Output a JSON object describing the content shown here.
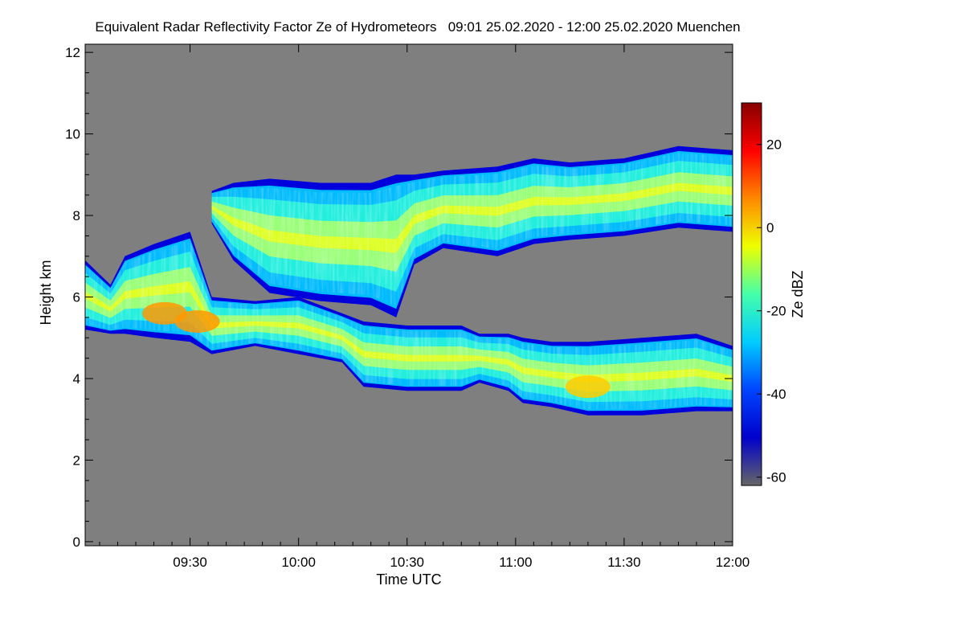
{
  "chart_data": {
    "type": "heatmap",
    "title": "Equivalent Radar Reflectivity Factor Ze of Hydrometeors   09:01 25.02.2020 - 12:00 25.02.2020 Muenchen",
    "xlabel": "Time UTC",
    "ylabel": "Height km",
    "xlim_minutes_after_0900": [
      1,
      180
    ],
    "ylim": [
      -0.1,
      12.2
    ],
    "x_ticks": [
      {
        "label": "09:30",
        "value": 30
      },
      {
        "label": "10:00",
        "value": 60
      },
      {
        "label": "10:30",
        "value": 90
      },
      {
        "label": "11:00",
        "value": 120
      },
      {
        "label": "11:30",
        "value": 150
      },
      {
        "label": "12:00",
        "value": 180
      }
    ],
    "y_ticks": [
      {
        "label": "0",
        "value": 0
      },
      {
        "label": "2",
        "value": 2
      },
      {
        "label": "4",
        "value": 4
      },
      {
        "label": "6",
        "value": 6
      },
      {
        "label": "8",
        "value": 8
      },
      {
        "label": "10",
        "value": 10
      },
      {
        "label": "12",
        "value": 12
      }
    ],
    "colorbar": {
      "label": "Ze dBZ",
      "range": [
        -62,
        30
      ],
      "ticks": [
        {
          "label": "20",
          "value": 20
        },
        {
          "label": "0",
          "value": 0
        },
        {
          "label": "-20",
          "value": -20
        },
        {
          "label": "-40",
          "value": -40
        },
        {
          "label": "-60",
          "value": -60
        }
      ],
      "colors": [
        "#666666",
        "#0000cc",
        "#0044ff",
        "#00ccff",
        "#44ffaa",
        "#eeff00",
        "#ff8800",
        "#ff0000",
        "#880000"
      ]
    },
    "background_color": "#7f7f7f",
    "layers": [
      {
        "name": "lower cloud layer",
        "points": [
          {
            "t": 1,
            "top": 6.9,
            "base": 5.2
          },
          {
            "t": 8,
            "top": 6.3,
            "base": 5.1
          },
          {
            "t": 12,
            "top": 7.0,
            "base": 5.1
          },
          {
            "t": 20,
            "top": 7.3,
            "base": 5.0
          },
          {
            "t": 30,
            "top": 7.6,
            "base": 4.9
          },
          {
            "t": 36,
            "top": 6.0,
            "base": 4.6
          },
          {
            "t": 48,
            "top": 5.9,
            "base": 4.8
          },
          {
            "t": 60,
            "top": 6.0,
            "base": 4.6
          },
          {
            "t": 72,
            "top": 5.6,
            "base": 4.4
          },
          {
            "t": 78,
            "top": 5.4,
            "base": 3.8
          },
          {
            "t": 90,
            "top": 5.3,
            "base": 3.7
          },
          {
            "t": 105,
            "top": 5.3,
            "base": 3.7
          },
          {
            "t": 110,
            "top": 5.1,
            "base": 3.9
          },
          {
            "t": 118,
            "top": 5.1,
            "base": 3.7
          },
          {
            "t": 122,
            "top": 5.0,
            "base": 3.4
          },
          {
            "t": 130,
            "top": 4.9,
            "base": 3.3
          },
          {
            "t": 140,
            "top": 4.9,
            "base": 3.1
          },
          {
            "t": 155,
            "top": 5.0,
            "base": 3.1
          },
          {
            "t": 170,
            "top": 5.1,
            "base": 3.2
          },
          {
            "t": 180,
            "top": 4.8,
            "base": 3.2
          }
        ],
        "cores": [
          {
            "t": 23,
            "h": 5.6,
            "dbz": 5
          },
          {
            "t": 32,
            "h": 5.4,
            "dbz": 8
          },
          {
            "t": 140,
            "h": 3.8,
            "dbz": 2
          }
        ]
      },
      {
        "name": "upper cloud layer",
        "points": [
          {
            "t": 36,
            "top": 8.6,
            "base": 7.8
          },
          {
            "t": 42,
            "top": 8.8,
            "base": 6.9
          },
          {
            "t": 52,
            "top": 8.9,
            "base": 6.1
          },
          {
            "t": 66,
            "top": 8.8,
            "base": 5.9
          },
          {
            "t": 80,
            "top": 8.8,
            "base": 5.8
          },
          {
            "t": 87,
            "top": 9.0,
            "base": 5.5
          },
          {
            "t": 92,
            "top": 9.0,
            "base": 6.8
          },
          {
            "t": 100,
            "top": 9.1,
            "base": 7.2
          },
          {
            "t": 115,
            "top": 9.2,
            "base": 7.0
          },
          {
            "t": 125,
            "top": 9.4,
            "base": 7.3
          },
          {
            "t": 135,
            "top": 9.3,
            "base": 7.4
          },
          {
            "t": 150,
            "top": 9.4,
            "base": 7.5
          },
          {
            "t": 165,
            "top": 9.7,
            "base": 7.7
          },
          {
            "t": 180,
            "top": 9.6,
            "base": 7.6
          }
        ],
        "cores": []
      }
    ]
  }
}
